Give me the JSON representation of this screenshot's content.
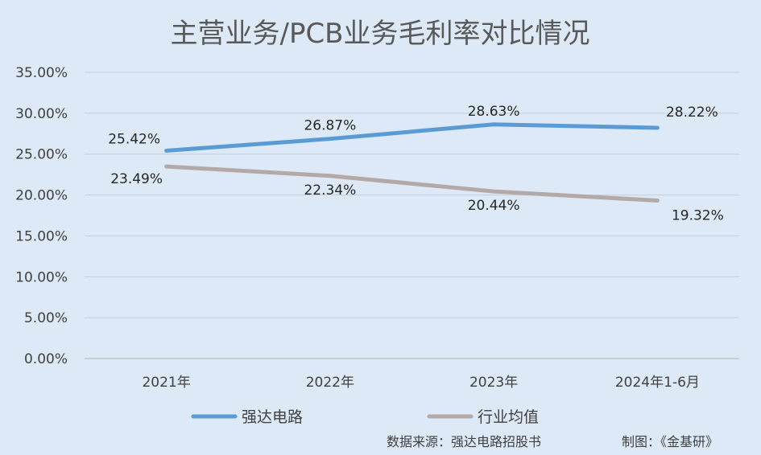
{
  "chart_data": {
    "type": "line",
    "title": "主营业务/PCB业务毛利率对比情况",
    "categories": [
      "2021年",
      "2022年",
      "2023年",
      "2024年1-6月"
    ],
    "y_ticks": [
      "0.00%",
      "5.00%",
      "10.00%",
      "15.00%",
      "20.00%",
      "25.00%",
      "30.00%",
      "35.00%"
    ],
    "ylim": [
      0,
      35
    ],
    "grid": true,
    "legend_position": "bottom",
    "series": [
      {
        "name": "强达电路",
        "color": "#5b9bd5",
        "values": [
          25.42,
          26.87,
          28.63,
          28.22
        ],
        "labels": [
          "25.42%",
          "26.87%",
          "28.63%",
          "28.22%"
        ]
      },
      {
        "name": "行业均值",
        "color": "#b3aaa8",
        "values": [
          23.49,
          22.34,
          20.44,
          19.32
        ],
        "labels": [
          "23.49%",
          "22.34%",
          "20.44%",
          "19.32%"
        ]
      }
    ]
  },
  "footer": {
    "source": "数据来源：强达电路招股书",
    "credit": "制图：《金基研》"
  }
}
